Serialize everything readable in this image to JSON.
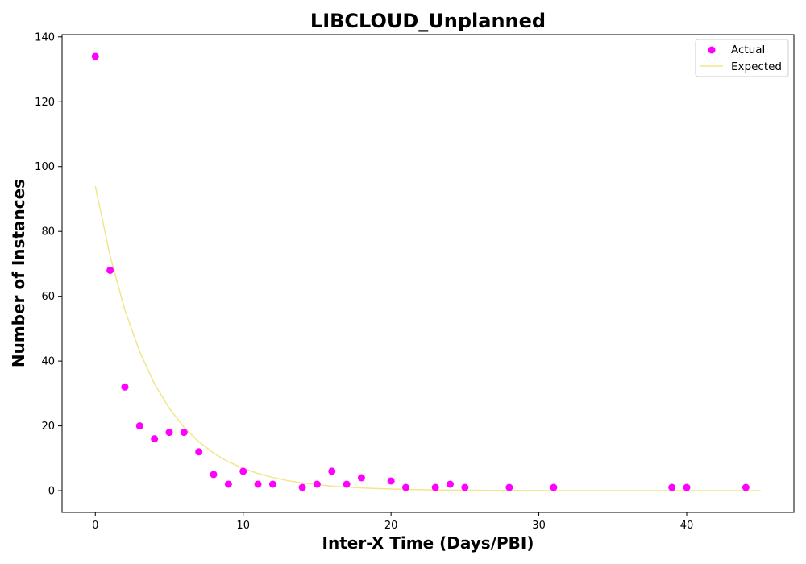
{
  "chart_data": {
    "type": "scatter",
    "title": "LIBCLOUD_Unplanned",
    "xlabel": "Inter-X Time (Days/PBI)",
    "ylabel": "Number of Instances",
    "xlim": [
      -2.25,
      47.25
    ],
    "ylim": [
      -6.7,
      140.7
    ],
    "xticks": [
      0,
      10,
      20,
      30,
      40
    ],
    "yticks": [
      0,
      20,
      40,
      60,
      80,
      100,
      120,
      140
    ],
    "grid": false,
    "legend": "top-right",
    "series": [
      {
        "name": "Actual",
        "kind": "scatter",
        "color": "#ff00ff",
        "points": [
          [
            0,
            134
          ],
          [
            1,
            68
          ],
          [
            2,
            32
          ],
          [
            3,
            20
          ],
          [
            4,
            16
          ],
          [
            5,
            18
          ],
          [
            6,
            18
          ],
          [
            7,
            12
          ],
          [
            8,
            5
          ],
          [
            9,
            2
          ],
          [
            10,
            6
          ],
          [
            11,
            2
          ],
          [
            12,
            2
          ],
          [
            14,
            1
          ],
          [
            15,
            2
          ],
          [
            16,
            6
          ],
          [
            17,
            2
          ],
          [
            18,
            4
          ],
          [
            20,
            3
          ],
          [
            21,
            1
          ],
          [
            23,
            1
          ],
          [
            24,
            2
          ],
          [
            25,
            1
          ],
          [
            28,
            1
          ],
          [
            31,
            1
          ],
          [
            39,
            1
          ],
          [
            40,
            1
          ],
          [
            44,
            1
          ]
        ]
      },
      {
        "name": "Expected",
        "kind": "line",
        "color": "#f0e68c",
        "points": [
          [
            0,
            94.0
          ],
          [
            1,
            72.4
          ],
          [
            2,
            55.7
          ],
          [
            3,
            42.9
          ],
          [
            4,
            33.0
          ],
          [
            5,
            25.4
          ],
          [
            6,
            19.6
          ],
          [
            7,
            15.1
          ],
          [
            8,
            11.6
          ],
          [
            9,
            8.9
          ],
          [
            10,
            6.9
          ],
          [
            11,
            5.3
          ],
          [
            12,
            4.1
          ],
          [
            13,
            3.1
          ],
          [
            14,
            2.4
          ],
          [
            15,
            1.9
          ],
          [
            16,
            1.4
          ],
          [
            17,
            1.1
          ],
          [
            18,
            0.85
          ],
          [
            19,
            0.65
          ],
          [
            20,
            0.5
          ],
          [
            21,
            0.39
          ],
          [
            22,
            0.3
          ],
          [
            23,
            0.23
          ],
          [
            24,
            0.18
          ],
          [
            25,
            0.14
          ],
          [
            26,
            0.1
          ],
          [
            27,
            0.08
          ],
          [
            28,
            0.06
          ],
          [
            29,
            0.05
          ],
          [
            30,
            0.04
          ],
          [
            31,
            0.03
          ],
          [
            32,
            0.02
          ],
          [
            33,
            0.02
          ],
          [
            34,
            0.01
          ],
          [
            35,
            0.01
          ],
          [
            36,
            0.01
          ],
          [
            37,
            0.0
          ],
          [
            38,
            0.0
          ],
          [
            39,
            0.0
          ],
          [
            40,
            0.0
          ],
          [
            41,
            0.0
          ],
          [
            42,
            0.0
          ],
          [
            43,
            0.0
          ],
          [
            44,
            0.0
          ],
          [
            45,
            0.0
          ]
        ]
      }
    ]
  }
}
